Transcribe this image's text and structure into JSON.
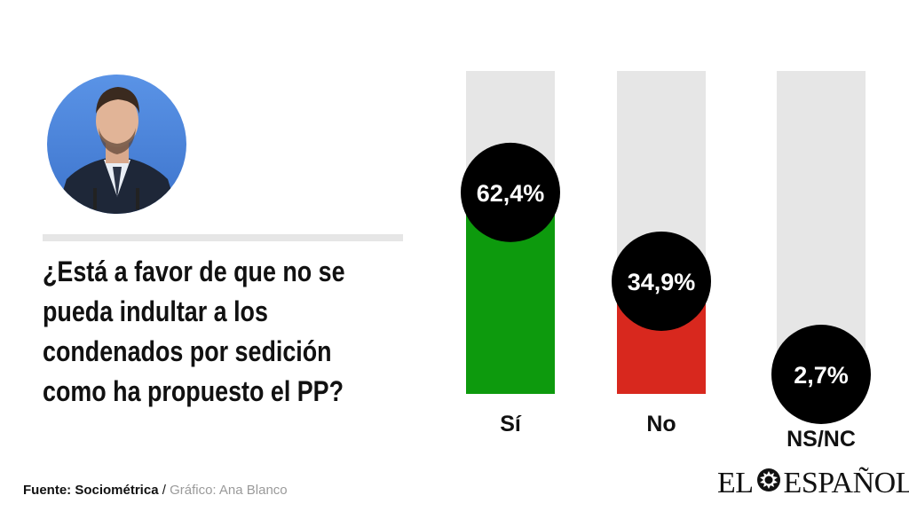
{
  "question": "¿Está a favor de que no se\npueda  indultar a los\ncondenados por sedición\ncomo ha  propuesto el PP?",
  "footer": {
    "source": "Fuente: Sociométrica",
    "separator": " / ",
    "credit": "Gráfico: Ana Blanco"
  },
  "logo": {
    "left": "EL",
    "right": "ESPAÑOL"
  },
  "chart_data": {
    "type": "bar",
    "categories": [
      "Sí",
      "No",
      "NS/NC"
    ],
    "values": [
      62.4,
      34.9,
      2.7
    ],
    "value_labels": [
      "62,4%",
      "34,9%",
      "2,7%"
    ],
    "ylim": [
      0,
      100
    ],
    "colors": [
      "#0d9a0d",
      "#d8281e",
      "#e6e6e6"
    ],
    "track_color": "#e6e6e6",
    "bubble_color": "#000000"
  }
}
